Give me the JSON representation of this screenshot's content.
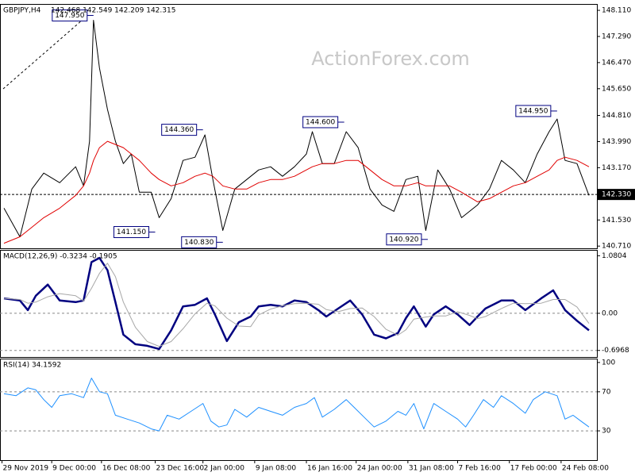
{
  "chart_data": [
    {
      "type": "line",
      "title": "GBPJPY,H4",
      "ohlc": "142.468 142.549 142.209 142.315",
      "watermark": "ActionForex.com",
      "xlim": [
        0,
        300
      ],
      "ylim": [
        140.64,
        148.31
      ],
      "yticks": [
        {
          "value": 148.11,
          "label": "148.110"
        },
        {
          "value": 147.29,
          "label": "147.290"
        },
        {
          "value": 146.47,
          "label": "146.470"
        },
        {
          "value": 145.65,
          "label": "145.650"
        },
        {
          "value": 144.81,
          "label": "144.810"
        },
        {
          "value": 143.99,
          "label": "143.990"
        },
        {
          "value": 143.17,
          "label": "143.170"
        },
        {
          "value": 141.53,
          "label": "141.530"
        },
        {
          "value": 140.71,
          "label": "140.710"
        }
      ],
      "grid": false,
      "x": [
        2,
        10,
        16,
        22,
        30,
        38,
        42,
        45,
        47,
        50,
        54,
        58,
        62,
        66,
        70,
        76,
        80,
        86,
        92,
        98,
        103,
        107,
        112,
        118,
        124,
        130,
        136,
        142,
        148,
        154,
        157,
        162,
        168,
        174,
        180,
        186,
        192,
        198,
        204,
        210,
        214,
        220,
        226,
        232,
        240,
        246,
        252,
        258,
        264,
        270,
        276,
        280,
        284,
        290,
        296
      ],
      "series": [
        {
          "color": "#000000",
          "values": [
            141.9,
            141.0,
            142.5,
            143.0,
            142.7,
            143.2,
            142.6,
            144.0,
            147.8,
            146.3,
            145.0,
            144.0,
            143.3,
            143.6,
            142.4,
            142.4,
            141.6,
            142.2,
            143.4,
            143.5,
            144.2,
            142.8,
            141.2,
            142.5,
            142.8,
            143.1,
            143.2,
            142.9,
            143.2,
            143.6,
            144.3,
            143.3,
            143.3,
            144.3,
            143.8,
            142.5,
            142.0,
            141.8,
            142.8,
            142.9,
            141.2,
            143.1,
            142.5,
            141.6,
            142.0,
            142.5,
            143.4,
            143.1,
            142.7,
            143.6,
            144.3,
            144.7,
            143.4,
            143.3,
            142.3
          ]
        },
        {
          "color": "#e00000",
          "values": [
            140.8,
            141.0,
            141.3,
            141.6,
            141.9,
            142.3,
            142.6,
            143.0,
            143.4,
            143.8,
            144.0,
            143.9,
            143.8,
            143.6,
            143.4,
            143.0,
            142.8,
            142.6,
            142.7,
            142.9,
            143.0,
            142.9,
            142.6,
            142.5,
            142.5,
            142.7,
            142.8,
            142.8,
            142.9,
            143.1,
            143.2,
            143.3,
            143.3,
            143.4,
            143.4,
            143.1,
            142.8,
            142.6,
            142.6,
            142.7,
            142.6,
            142.6,
            142.6,
            142.4,
            142.1,
            142.2,
            142.4,
            142.6,
            142.7,
            142.9,
            143.1,
            143.4,
            143.5,
            143.4,
            143.2
          ]
        }
      ],
      "annotations": [
        {
          "x": 47,
          "value": 147.95,
          "label": "147.950"
        },
        {
          "x": 102,
          "value": 144.36,
          "label": "144.360"
        },
        {
          "x": 78,
          "value": 141.15,
          "label": "141.150"
        },
        {
          "x": 112,
          "value": 140.83,
          "label": "140.830"
        },
        {
          "x": 173,
          "value": 144.6,
          "label": "144.600"
        },
        {
          "x": 215,
          "value": 140.92,
          "label": "140.920"
        },
        {
          "x": 280,
          "value": 144.95,
          "label": "144.950"
        }
      ],
      "current": {
        "value": 142.33,
        "label": "142.330"
      }
    },
    {
      "type": "line",
      "title": "MACD(12,26,9) -0.3234 -0.1905",
      "xlim": [
        0,
        300
      ],
      "ylim": [
        -0.82,
        1.19
      ],
      "yticks": [
        1.0804,
        {
          "value": 0,
          "label": "0.00"
        },
        -0.6968
      ],
      "grid": true,
      "x": [
        2,
        10,
        14,
        18,
        24,
        30,
        38,
        42,
        46,
        50,
        54,
        58,
        62,
        68,
        74,
        80,
        86,
        92,
        98,
        104,
        108,
        114,
        120,
        126,
        130,
        136,
        142,
        148,
        154,
        160,
        164,
        170,
        176,
        182,
        188,
        194,
        200,
        204,
        208,
        214,
        218,
        224,
        230,
        236,
        240,
        244,
        252,
        258,
        264,
        272,
        278,
        284,
        290,
        296
      ],
      "series": [
        {
          "color": "#000080",
          "width": 2.5,
          "values": [
            0.28,
            0.24,
            0.06,
            0.33,
            0.54,
            0.24,
            0.21,
            0.24,
            0.96,
            1.04,
            0.81,
            0.21,
            -0.4,
            -0.58,
            -0.61,
            -0.67,
            -0.32,
            0.13,
            0.16,
            0.28,
            -0.02,
            -0.52,
            -0.17,
            -0.06,
            0.13,
            0.16,
            0.13,
            0.24,
            0.21,
            0.06,
            -0.06,
            0.09,
            0.24,
            -0.02,
            -0.4,
            -0.47,
            -0.37,
            -0.09,
            0.13,
            -0.25,
            -0.02,
            0.13,
            -0.02,
            -0.22,
            -0.06,
            0.09,
            0.24,
            0.24,
            0.06,
            0.28,
            0.43,
            0.06,
            -0.14,
            -0.32
          ]
        },
        {
          "color": "#a8a8a8",
          "width": 1,
          "values": [
            0.28,
            0.26,
            0.19,
            0.21,
            0.31,
            0.37,
            0.33,
            0.23,
            0.47,
            0.75,
            0.94,
            0.69,
            0.21,
            -0.26,
            -0.53,
            -0.62,
            -0.53,
            -0.29,
            -0.01,
            0.19,
            0.14,
            -0.09,
            -0.24,
            -0.25,
            -0.03,
            0.08,
            0.14,
            0.18,
            0.19,
            0.17,
            0.07,
            0.03,
            0.09,
            0.1,
            -0.06,
            -0.3,
            -0.41,
            -0.31,
            -0.11,
            -0.07,
            -0.05,
            -0.05,
            0.03,
            -0.04,
            -0.1,
            -0.06,
            0.09,
            0.19,
            0.18,
            0.19,
            0.26,
            0.26,
            0.12,
            -0.19
          ]
        }
      ]
    },
    {
      "type": "line",
      "title": "RSI(14) 34.1592",
      "xlim": [
        0,
        300
      ],
      "ylim": [
        0,
        104
      ],
      "yticks": [
        100,
        70,
        30
      ],
      "grid": true,
      "xticks": [
        {
          "value": 1,
          "label": "29 Nov 2019"
        },
        {
          "value": 26,
          "label": "9 Dec 00:00"
        },
        {
          "value": 51,
          "label": "16 Dec 08:00"
        },
        {
          "value": 78,
          "label": "23 Dec 16:00"
        },
        {
          "value": 102,
          "label": "2 Jan 00:00"
        },
        {
          "value": 128,
          "label": "9 Jan 08:00"
        },
        {
          "value": 154,
          "label": "16 Jan 16:00"
        },
        {
          "value": 179,
          "label": "24 Jan 00:00"
        },
        {
          "value": 205,
          "label": "31 Jan 08:00"
        },
        {
          "value": 230,
          "label": "7 Feb 16:00"
        },
        {
          "value": 256,
          "label": "17 Feb 00:00"
        },
        {
          "value": 282,
          "label": "24 Feb 08:00"
        }
      ],
      "x": [
        2,
        8,
        14,
        18,
        22,
        26,
        30,
        36,
        42,
        46,
        50,
        54,
        58,
        64,
        70,
        76,
        80,
        84,
        90,
        96,
        102,
        106,
        110,
        114,
        118,
        124,
        130,
        136,
        142,
        148,
        154,
        158,
        162,
        168,
        174,
        178,
        184,
        188,
        194,
        200,
        204,
        208,
        213,
        218,
        224,
        230,
        234,
        238,
        243,
        248,
        252,
        258,
        264,
        268,
        274,
        280,
        284,
        288,
        292,
        296
      ],
      "series": [
        {
          "color": "#1e90ff",
          "width": 1,
          "values": [
            68,
            66,
            74,
            72,
            62,
            54,
            66,
            68,
            64,
            84,
            70,
            68,
            46,
            42,
            38,
            32,
            30,
            46,
            42,
            50,
            58,
            40,
            34,
            36,
            52,
            44,
            54,
            50,
            46,
            54,
            58,
            64,
            44,
            52,
            62,
            54,
            42,
            34,
            40,
            50,
            46,
            58,
            32,
            58,
            50,
            42,
            34,
            46,
            62,
            54,
            66,
            58,
            48,
            62,
            70,
            66,
            42,
            46,
            40,
            34
          ]
        }
      ]
    }
  ]
}
